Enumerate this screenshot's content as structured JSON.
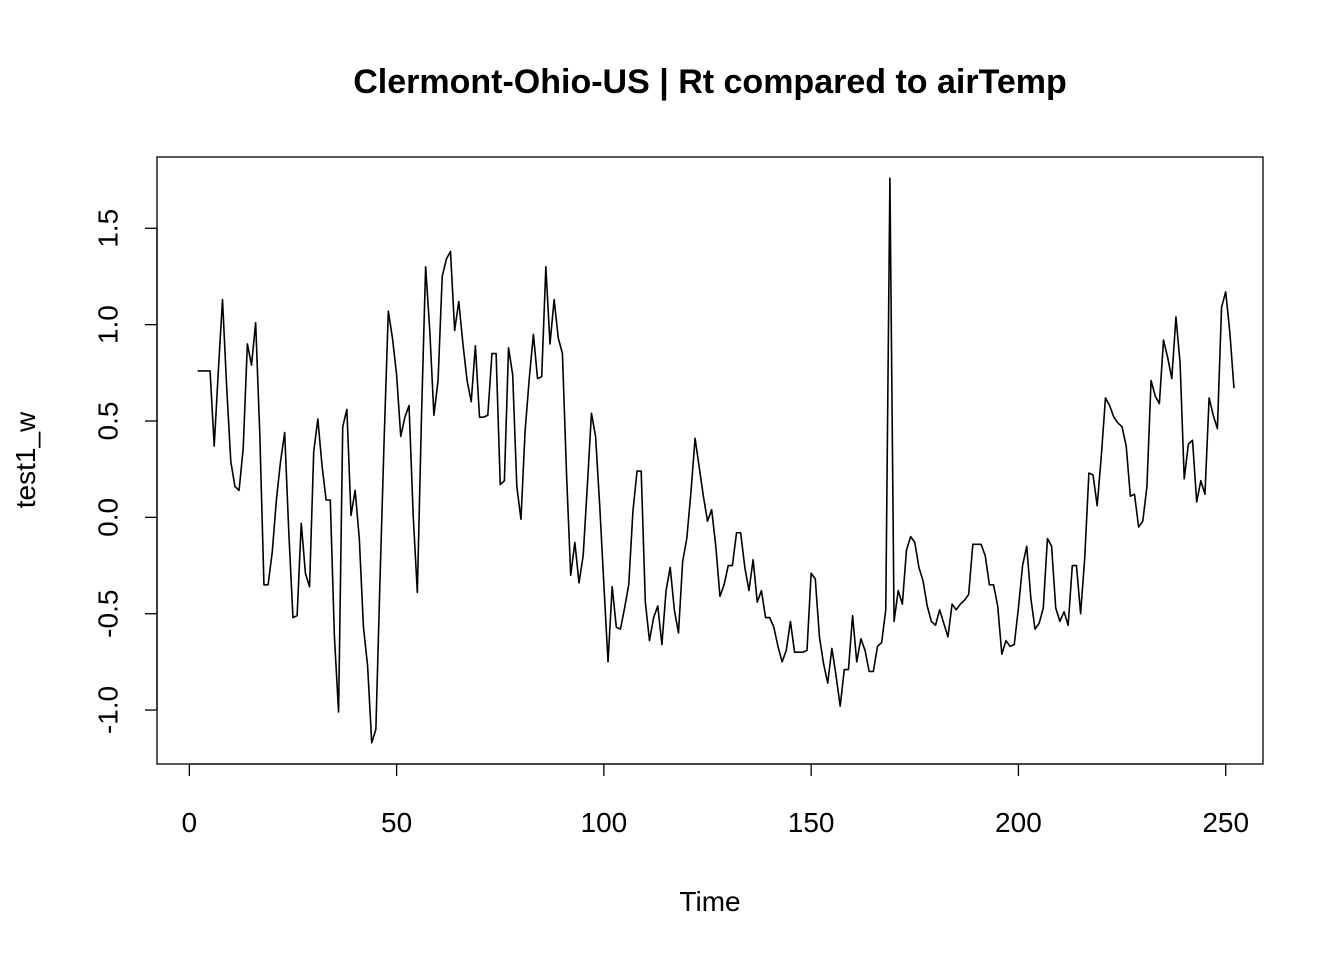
{
  "chart_data": {
    "type": "line",
    "title": "Clermont-Ohio-US | Rt compared to airTemp",
    "xlabel": "Time",
    "ylabel": "test1_w",
    "xlim": [
      -7.8,
      259.0
    ],
    "ylim": [
      -1.28,
      1.87
    ],
    "xticks": [
      0,
      50,
      100,
      150,
      200,
      250
    ],
    "xtick_labels": [
      "0",
      "50",
      "100",
      "150",
      "200",
      "250"
    ],
    "yticks": [
      -1.0,
      -0.5,
      0.0,
      0.5,
      1.0,
      1.5
    ],
    "ytick_labels": [
      "-1.0",
      "-0.5",
      "0.0",
      "0.5",
      "1.0",
      "1.5"
    ],
    "grid": false,
    "series": [
      {
        "color": "#000000",
        "x_start": 2,
        "values": [
          0.76,
          0.76,
          0.76,
          0.76,
          0.37,
          0.76,
          1.13,
          0.68,
          0.29,
          0.16,
          0.14,
          0.36,
          0.9,
          0.79,
          1.01,
          0.43,
          -0.35,
          -0.35,
          -0.18,
          0.09,
          0.29,
          0.44,
          -0.08,
          -0.52,
          -0.51,
          -0.03,
          -0.29,
          -0.36,
          0.34,
          0.51,
          0.27,
          0.09,
          0.09,
          -0.62,
          -1.01,
          0.47,
          0.56,
          0.01,
          0.14,
          -0.11,
          -0.57,
          -0.77,
          -1.17,
          -1.1,
          -0.32,
          0.41,
          1.07,
          0.93,
          0.74,
          0.42,
          0.52,
          0.58,
          0.01,
          -0.39,
          0.52,
          1.3,
          0.97,
          0.53,
          0.71,
          1.25,
          1.34,
          1.38,
          0.97,
          1.12,
          0.9,
          0.71,
          0.6,
          0.89,
          0.52,
          0.52,
          0.53,
          0.85,
          0.85,
          0.17,
          0.19,
          0.88,
          0.74,
          0.16,
          -0.01,
          0.45,
          0.72,
          0.95,
          0.72,
          0.73,
          1.3,
          0.9,
          1.13,
          0.93,
          0.85,
          0.22,
          -0.3,
          -0.13,
          -0.34,
          -0.2,
          0.16,
          0.54,
          0.42,
          0.06,
          -0.35,
          -0.75,
          -0.36,
          -0.57,
          -0.58,
          -0.47,
          -0.35,
          0.03,
          0.24,
          0.24,
          -0.44,
          -0.64,
          -0.52,
          -0.46,
          -0.66,
          -0.38,
          -0.26,
          -0.48,
          -0.6,
          -0.23,
          -0.11,
          0.13,
          0.41,
          0.26,
          0.11,
          -0.02,
          0.04,
          -0.15,
          -0.41,
          -0.35,
          -0.25,
          -0.25,
          -0.08,
          -0.08,
          -0.26,
          -0.38,
          -0.22,
          -0.44,
          -0.38,
          -0.52,
          -0.52,
          -0.57,
          -0.67,
          -0.75,
          -0.69,
          -0.54,
          -0.7,
          -0.7,
          -0.7,
          -0.69,
          -0.29,
          -0.32,
          -0.62,
          -0.76,
          -0.86,
          -0.68,
          -0.82,
          -0.98,
          -0.79,
          -0.79,
          -0.51,
          -0.75,
          -0.63,
          -0.69,
          -0.8,
          -0.8,
          -0.67,
          -0.65,
          -0.48,
          1.76,
          -0.54,
          -0.38,
          -0.45,
          -0.17,
          -0.1,
          -0.13,
          -0.26,
          -0.33,
          -0.46,
          -0.54,
          -0.56,
          -0.48,
          -0.55,
          -0.62,
          -0.45,
          -0.48,
          -0.45,
          -0.43,
          -0.4,
          -0.14,
          -0.14,
          -0.14,
          -0.2,
          -0.35,
          -0.35,
          -0.46,
          -0.71,
          -0.64,
          -0.67,
          -0.66,
          -0.47,
          -0.25,
          -0.15,
          -0.42,
          -0.58,
          -0.55,
          -0.47,
          -0.11,
          -0.15,
          -0.47,
          -0.54,
          -0.49,
          -0.56,
          -0.25,
          -0.25,
          -0.5,
          -0.21,
          0.23,
          0.22,
          0.06,
          0.32,
          0.62,
          0.58,
          0.52,
          0.49,
          0.47,
          0.37,
          0.11,
          0.12,
          -0.05,
          -0.02,
          0.16,
          0.71,
          0.63,
          0.59,
          0.92,
          0.83,
          0.72,
          1.04,
          0.8,
          0.2,
          0.38,
          0.4,
          0.08,
          0.19,
          0.12,
          0.62,
          0.53,
          0.46,
          1.09,
          1.17,
          0.96,
          0.67
        ]
      }
    ]
  }
}
